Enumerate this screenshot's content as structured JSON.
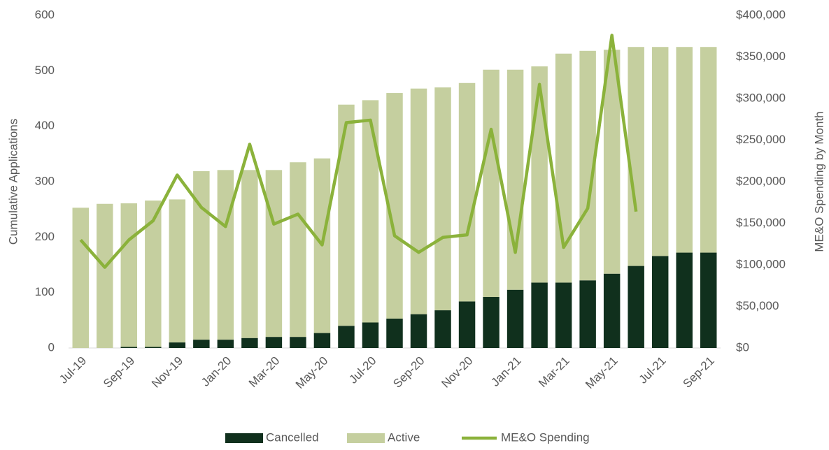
{
  "chart_data": {
    "type": "bar",
    "stacked": true,
    "categories": [
      "Jul-19",
      null,
      "Sep-19",
      null,
      "Nov-19",
      null,
      "Jan-20",
      null,
      "Mar-20",
      null,
      "May-20",
      null,
      "Jul-20",
      null,
      "Sep-20",
      null,
      "Nov-20",
      null,
      "Jan-21",
      null,
      "Mar-21",
      null,
      "May-21",
      null,
      "Jul-21",
      null,
      "Sep-21"
    ],
    "series": [
      {
        "name": "Cancelled",
        "color": "#10301d",
        "values": [
          0,
          0,
          2,
          2,
          10,
          15,
          15,
          18,
          20,
          20,
          27,
          40,
          46,
          53,
          61,
          68,
          84,
          92,
          105,
          118,
          118,
          122,
          134,
          148,
          166,
          172,
          172
        ]
      },
      {
        "name": "Active",
        "color": "#c5cf9f",
        "values": [
          253,
          260,
          259,
          264,
          258,
          304,
          306,
          303,
          301,
          315,
          315,
          399,
          401,
          407,
          407,
          402,
          394,
          410,
          397,
          390,
          413,
          414,
          404,
          395,
          377,
          371,
          371
        ]
      },
      {
        "name": "ME&O Spending",
        "color": "#8bb23b",
        "type": "line",
        "axis": "y2",
        "values": [
          130000,
          97000,
          130000,
          153000,
          208000,
          169000,
          146000,
          245000,
          149000,
          161000,
          124000,
          271000,
          274000,
          135000,
          115000,
          133000,
          136000,
          263000,
          115000,
          317000,
          121000,
          168000,
          376000,
          164000,
          null,
          null,
          null
        ]
      }
    ],
    "y_label": "Cumulative Applications",
    "y2_label": "ME&O Spending by Month",
    "ylim": [
      0,
      600
    ],
    "yticks": [
      0,
      100,
      200,
      300,
      400,
      500,
      600
    ],
    "y2lim": [
      0,
      400000
    ],
    "y2ticks": [
      {
        "value": 0,
        "label": "$0"
      },
      {
        "value": 50000,
        "label": "$50,000"
      },
      {
        "value": 100000,
        "label": "$100,000"
      },
      {
        "value": 150000,
        "label": "$150,000"
      },
      {
        "value": 200000,
        "label": "$200,000"
      },
      {
        "value": 250000,
        "label": "$250,000"
      },
      {
        "value": 300000,
        "label": "$300,000"
      },
      {
        "value": 350000,
        "label": "$350,000"
      },
      {
        "value": 400000,
        "label": "$400,000"
      }
    ],
    "grid": false,
    "legend": "bottom"
  }
}
